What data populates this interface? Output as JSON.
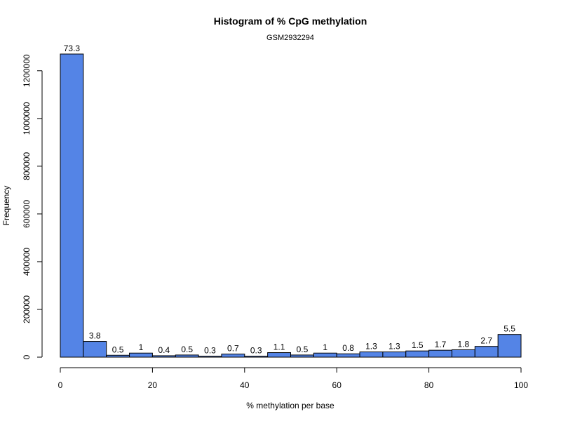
{
  "chart_data": {
    "type": "bar",
    "title": "Histogram of % CpG methylation",
    "subtitle": "GSM2932294",
    "xlabel": "% methylation per base",
    "ylabel": "Frequency",
    "xlim": [
      0,
      100
    ],
    "ylim": [
      0,
      1270000
    ],
    "x_ticks": [
      0,
      20,
      40,
      60,
      80,
      100
    ],
    "y_ticks": [
      0,
      200000,
      400000,
      600000,
      800000,
      1000000,
      1200000
    ],
    "bin_edges": [
      0,
      5,
      10,
      15,
      20,
      25,
      30,
      35,
      40,
      45,
      50,
      55,
      60,
      65,
      70,
      75,
      80,
      85,
      90,
      95,
      100
    ],
    "values": [
      1270000,
      66000,
      8000,
      17000,
      6000,
      9000,
      4000,
      13000,
      4000,
      19000,
      9000,
      17000,
      14000,
      22000,
      22000,
      26000,
      29000,
      31000,
      45000,
      95000
    ],
    "bar_labels": [
      "73.3",
      "3.8",
      "0.5",
      "1",
      "0.4",
      "0.5",
      "0.3",
      "0.7",
      "0.3",
      "1.1",
      "0.5",
      "1",
      "0.8",
      "1.3",
      "1.3",
      "1.5",
      "1.7",
      "1.8",
      "2.7",
      "5.5"
    ],
    "bar_color": "#5484E6",
    "grid": false,
    "legend": "none"
  }
}
